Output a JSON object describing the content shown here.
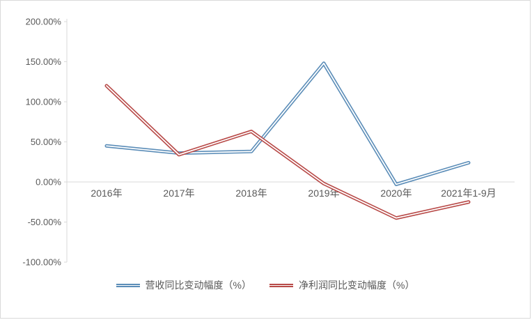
{
  "chart_data": {
    "type": "line",
    "title": "",
    "categories": [
      "2016年",
      "2017年",
      "2018年",
      "2019年",
      "2020年",
      "2021年1-9月"
    ],
    "series": [
      {
        "name": "营收同比变动幅度（%）",
        "color": "#5B8DB8",
        "values": [
          45,
          36,
          38,
          148,
          -3,
          24
        ]
      },
      {
        "name": "净利润同比变动幅度（%）",
        "color": "#B84A48",
        "values": [
          120,
          34,
          63,
          -2,
          -45,
          -25
        ]
      }
    ],
    "ylim": [
      -100,
      200
    ],
    "ytick_step": 50,
    "ytick_labels": [
      "200.00%",
      "150.00%",
      "100.00%",
      "50.00%",
      "0.00%",
      "-50.00%",
      "-100.00%"
    ],
    "xlabel": "",
    "ylabel": "",
    "grid": false,
    "legend_position": "bottom",
    "axis_color": "#d9d9d9",
    "text_color": "#595959",
    "line_inner_color": "#ffffff"
  }
}
